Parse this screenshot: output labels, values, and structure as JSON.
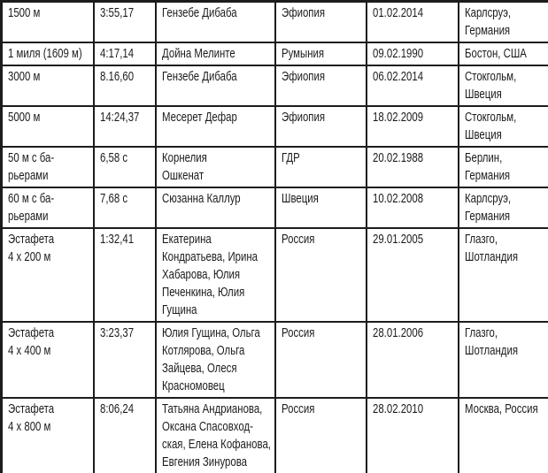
{
  "colors": {
    "border": "#1c1c1c",
    "text": "#1c1c1c",
    "background": "#ffffff"
  },
  "table": {
    "description": "womens-indoor-athletics-world-records",
    "rows": [
      {
        "event": "1500 м",
        "result": "3:55,17",
        "athlete": "Гензебе Дибаба",
        "country": "Эфиопия",
        "date": "01.02.2014",
        "location": "Карлсруэ,\nГермания"
      },
      {
        "event": "1 миля (1609 м)",
        "result": "4:17,14",
        "athlete": "Дойна Мелинте",
        "country": "Румыния",
        "date": "09.02.1990",
        "location": "Бостон, США"
      },
      {
        "event": "3000 м",
        "result": "8.16,60",
        "athlete": "Гензебе Дибаба",
        "country": "Эфиопия",
        "date": "06.02.2014",
        "location": "Стокгольм,\nШвеция"
      },
      {
        "event": "5000 м",
        "result": "14:24,37",
        "athlete": "Месерет Дефар",
        "country": "Эфиопия",
        "date": "18.02.2009",
        "location": "Стокгольм,\nШвеция"
      },
      {
        "event": "50 м с ба-\nрьерами",
        "result": "6,58 с",
        "athlete": "Корнелия\nОшкенат",
        "country": "ГДР",
        "date": "20.02.1988",
        "location": "Берлин,\nГермания"
      },
      {
        "event": "60 м с ба-\nрьерами",
        "result": "7,68 с",
        "athlete": "Сюзанна Каллур",
        "country": "Швеция",
        "date": "10.02.2008",
        "location": "Карлсруэ,\nГермания"
      },
      {
        "event": "Эстафета\n4 x 200 м",
        "result": "1:32,41",
        "athlete": "Екатерина\nКондратьева, Ирина\nХабарова, Юлия\nПеченкина, Юлия\nГущина",
        "country": "Россия",
        "date": "29.01.2005",
        "location": "Глазго,\nШотландия"
      },
      {
        "event": "Эстафета\n4 x 400 м",
        "result": "3:23,37",
        "athlete": "Юлия Гущина, Ольга\nКотлярова, Ольга\nЗайцева, Олеся\nКрасномовец",
        "country": "Россия",
        "date": "28.01.2006",
        "location": "Глазго,\nШотландия"
      },
      {
        "event": "Эстафета\n4 x 800 м",
        "result": "8:06,24",
        "athlete": "Татьяна Андрианова,\nОксана Спасовход-\nская, Елена Кофанова,\nЕвгения Зинурова",
        "country": "Россия",
        "date": "28.02.2010",
        "location": "Москва, Россия"
      }
    ]
  }
}
